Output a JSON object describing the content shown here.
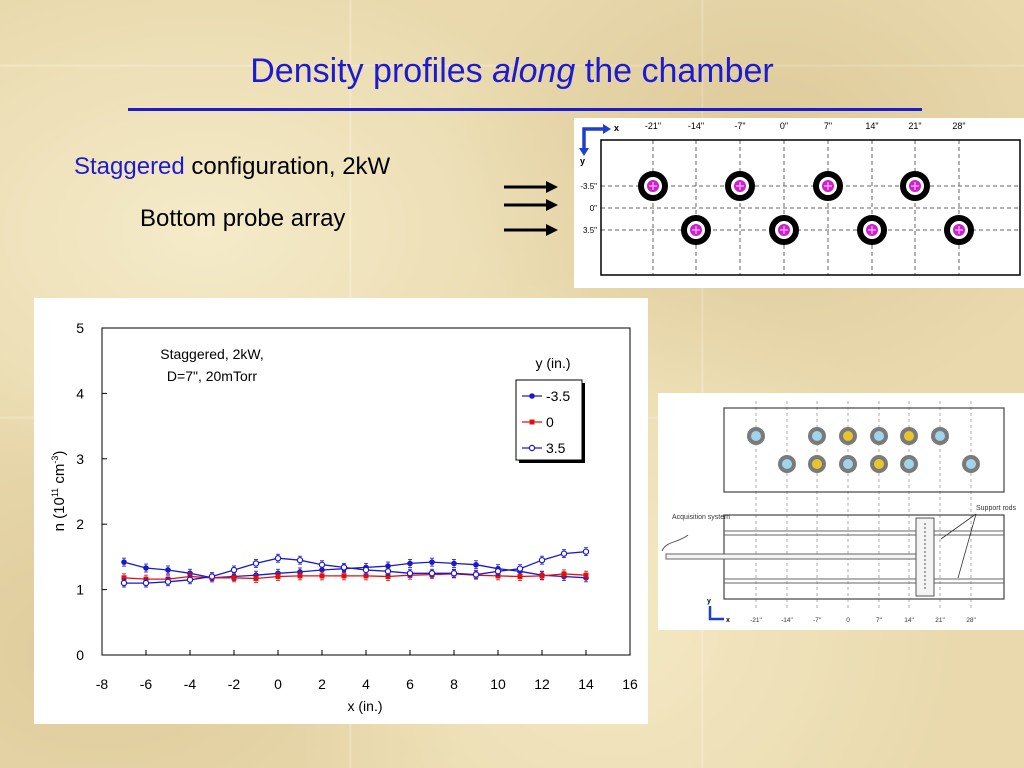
{
  "slide": {
    "title_pre": "Density profiles ",
    "title_em": "along",
    "title_post": " the chamber",
    "subtitle_hl": "Staggered",
    "subtitle_rest": " configuration, 2kW",
    "caption": "Bottom probe array"
  },
  "probe_diagram": {
    "x_axis": "x",
    "y_axis": "y",
    "x_labels": [
      "-21\"",
      "-14\"",
      "-7\"",
      "0\"",
      "7\"",
      "14\"",
      "21\"",
      "28\""
    ],
    "y_labels": [
      "-3.5\"",
      "0\"",
      "3.5\""
    ],
    "ring_color": "#000000",
    "center_color": "#cc22cc"
  },
  "rig_diagram": {
    "acquisition_label": "Acquisition system",
    "support_label": "Support rods",
    "x_axis": "x",
    "y_axis": "y",
    "x_labels": [
      "-21\"",
      "-14\"",
      "-7\"",
      "0",
      "7\"",
      "14\"",
      "21\"",
      "28\""
    ],
    "probe_blue": "#9fd4ea",
    "probe_yellow": "#e8c52a",
    "probe_ring": "#7a7a7a"
  },
  "chart_data": {
    "type": "line",
    "annotation_line1": "Staggered, 2kW,",
    "annotation_line2": "D=7\", 20mTorr",
    "xlabel": "x (in.)",
    "ylabel_pre": "n (10",
    "ylabel_sup1": "11",
    "ylabel_mid": " cm",
    "ylabel_sup2": "-3",
    "ylabel_post": ")",
    "legend_title": "y (in.)",
    "legend_position": "right",
    "xlim": [
      -8,
      16
    ],
    "ylim": [
      0,
      5
    ],
    "xticks": [
      "-8",
      "-6",
      "-4",
      "-2",
      "0",
      "2",
      "4",
      "6",
      "8",
      "10",
      "12",
      "14",
      "16"
    ],
    "yticks": [
      "0",
      "1",
      "2",
      "3",
      "4",
      "5"
    ],
    "x": [
      -7,
      -6,
      -5,
      -4,
      -3,
      -2,
      -1,
      0,
      1,
      2,
      3,
      4,
      5,
      6,
      7,
      8,
      9,
      10,
      11,
      12,
      13,
      14
    ],
    "series": [
      {
        "name": "-3.5",
        "color": "#1a1acc",
        "marker": "filled-circle",
        "values": [
          1.42,
          1.33,
          1.3,
          1.25,
          1.18,
          1.2,
          1.22,
          1.25,
          1.27,
          1.3,
          1.32,
          1.34,
          1.36,
          1.4,
          1.42,
          1.4,
          1.38,
          1.32,
          1.28,
          1.22,
          1.2,
          1.18
        ]
      },
      {
        "name": "0",
        "color": "#e01010",
        "marker": "filled-square",
        "values": [
          1.18,
          1.16,
          1.16,
          1.2,
          1.18,
          1.18,
          1.17,
          1.2,
          1.21,
          1.21,
          1.21,
          1.21,
          1.2,
          1.22,
          1.23,
          1.24,
          1.22,
          1.21,
          1.2,
          1.21,
          1.24,
          1.22
        ]
      },
      {
        "name": "3.5",
        "color": "#1a1acc",
        "marker": "open-circle",
        "values": [
          1.1,
          1.1,
          1.12,
          1.15,
          1.2,
          1.3,
          1.4,
          1.48,
          1.45,
          1.38,
          1.34,
          1.3,
          1.28,
          1.25,
          1.25,
          1.25,
          1.23,
          1.28,
          1.32,
          1.45,
          1.55,
          1.58
        ]
      }
    ]
  }
}
